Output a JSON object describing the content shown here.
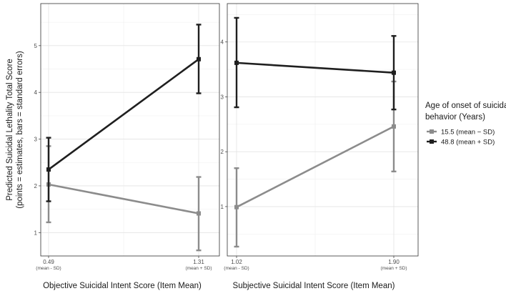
{
  "chart_data": [
    {
      "type": "line",
      "xlabel": "Objective Suicidal Intent Score (Item Mean)",
      "ylabel": [
        "Predicted Suicidal Lethality Total Score",
        "(points = estimates, bars = standard errors)"
      ],
      "x_ticks": [
        {
          "value": "0.49",
          "sub": "(mean - SD)"
        },
        {
          "value": "1.31",
          "sub": "(mean + SD)"
        }
      ],
      "y_ticks": [
        "1",
        "2",
        "3",
        "4",
        "5"
      ],
      "ylim": [
        0.5,
        5.9
      ],
      "grid": true,
      "series": [
        {
          "name": "15.5 (mean − SD)",
          "color": "#8c8c8c",
          "points": [
            {
              "x": "0.49",
              "y": 2.03,
              "lo": 1.22,
              "hi": 2.85
            },
            {
              "x": "1.31",
              "y": 1.41,
              "lo": 0.62,
              "hi": 2.19
            }
          ]
        },
        {
          "name": "48.8 (mean + SD)",
          "color": "#1f1f1f",
          "points": [
            {
              "x": "0.49",
              "y": 2.35,
              "lo": 1.67,
              "hi": 3.03
            },
            {
              "x": "1.31",
              "y": 4.71,
              "lo": 3.98,
              "hi": 5.45
            }
          ]
        }
      ]
    },
    {
      "type": "line",
      "xlabel": "Subjective Suicidal Intent Score (Item Mean)",
      "x_ticks": [
        {
          "value": "1.02",
          "sub": "(mean - SD)"
        },
        {
          "value": "1.90",
          "sub": "(mean + SD)"
        }
      ],
      "y_ticks": [
        "1",
        "2",
        "3",
        "4"
      ],
      "ylim": [
        0.1,
        4.7
      ],
      "grid": true,
      "series": [
        {
          "name": "15.5 (mean − SD)",
          "color": "#8c8c8c",
          "points": [
            {
              "x": "1.02",
              "y": 0.99,
              "lo": 0.27,
              "hi": 1.7
            },
            {
              "x": "1.90",
              "y": 2.46,
              "lo": 1.64,
              "hi": 3.28
            }
          ]
        },
        {
          "name": "48.8 (mean + SD)",
          "color": "#1f1f1f",
          "points": [
            {
              "x": "1.02",
              "y": 3.62,
              "lo": 2.81,
              "hi": 4.44
            },
            {
              "x": "1.90",
              "y": 3.44,
              "lo": 2.77,
              "hi": 4.11
            }
          ]
        }
      ]
    }
  ],
  "legend": {
    "title": [
      "Age of onset of suicidal",
      "behavior (Years)"
    ],
    "placement": "right",
    "items": [
      {
        "label": "15.5 (mean − SD)",
        "color": "#8c8c8c"
      },
      {
        "label": "48.8 (mean + SD)",
        "color": "#1f1f1f"
      }
    ]
  }
}
